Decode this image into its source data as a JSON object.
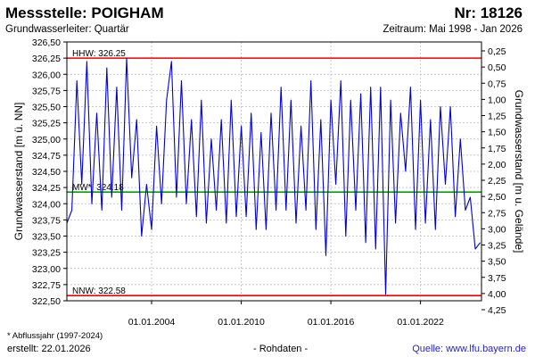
{
  "header": {
    "title": "Messstelle: POIGHAM",
    "number": "Nr: 18126",
    "subtitle": "Grundwasserleiter: Quartär",
    "period": "Zeitraum: Mai 1998 - Jan 2026"
  },
  "footer": {
    "footnote": "* Abflussjahr (1997-2024)",
    "created": "erstellt:  22.01.2026",
    "rawdata": "- Rohdaten -",
    "source": "Quelle: www.lfu.bayern.de"
  },
  "colors": {
    "series": "#0000dd",
    "hhw": "#ee0000",
    "nnw": "#ee0000",
    "mw": "#00a000",
    "grid": "#c8c8c8"
  },
  "chart_data": {
    "type": "line",
    "ylabel_left": "Grundwasserstand [m ü. NN]",
    "ylabel_right": "Grundwasserstand [m u. Gelände]",
    "ylim": [
      322.5,
      326.5
    ],
    "xlim": [
      "1998-05-01",
      "2026-01-31"
    ],
    "y_ticks": [
      "326,50",
      "326,25",
      "326,00",
      "325,75",
      "325,50",
      "325,25",
      "325,00",
      "324,75",
      "324,50",
      "324,25",
      "324,00",
      "323,75",
      "323,50",
      "323,25",
      "323,00",
      "322,75",
      "322,50"
    ],
    "y2_ticks": [
      "0,25",
      "0,50",
      "0,75",
      "1,00",
      "1,25",
      "1,50",
      "1,75",
      "2,00",
      "2,25",
      "2,50",
      "2,75",
      "3,00",
      "3,25",
      "3,50",
      "3,75",
      "4,00",
      "4,25"
    ],
    "x_ticks": [
      "01.01.2004",
      "01.01.2010",
      "01.01.2016",
      "01.01.2022"
    ],
    "grid": true,
    "reference_lines": [
      {
        "label": "HHW: 326.25",
        "value": 326.25
      },
      {
        "label": "MW*: 324.18",
        "value": 324.18
      },
      {
        "label": "NNW: 322.58",
        "value": 322.58
      }
    ],
    "series": [
      {
        "x": [
          "1998-05",
          "1998-09",
          "1999-01",
          "1999-05",
          "1999-09",
          "2000-01",
          "2000-05",
          "2000-09",
          "2001-01",
          "2001-05",
          "2001-09",
          "2002-01",
          "2002-05",
          "2002-09",
          "2003-01",
          "2003-05",
          "2003-09",
          "2004-01",
          "2004-05",
          "2004-09",
          "2005-01",
          "2005-05",
          "2005-09",
          "2006-01",
          "2006-05",
          "2006-09",
          "2007-01",
          "2007-05",
          "2007-09",
          "2008-01",
          "2008-05",
          "2008-09",
          "2009-01",
          "2009-05",
          "2009-09",
          "2010-01",
          "2010-05",
          "2010-09",
          "2011-01",
          "2011-05",
          "2011-09",
          "2012-01",
          "2012-05",
          "2012-09",
          "2013-01",
          "2013-05",
          "2013-09",
          "2014-01",
          "2014-05",
          "2014-09",
          "2015-01",
          "2015-05",
          "2015-09",
          "2016-01",
          "2016-05",
          "2016-09",
          "2017-01",
          "2017-05",
          "2017-09",
          "2018-01",
          "2018-05",
          "2018-09",
          "2019-01",
          "2019-05",
          "2019-09",
          "2020-01",
          "2020-05",
          "2020-09",
          "2021-01",
          "2021-05",
          "2021-09",
          "2022-01",
          "2022-05",
          "2022-09",
          "2023-01",
          "2023-05",
          "2023-09",
          "2024-01",
          "2024-05",
          "2024-09",
          "2025-01",
          "2025-05",
          "2025-09",
          "2026-01"
        ],
        "values": [
          323.7,
          323.9,
          325.9,
          324.3,
          326.2,
          324.0,
          325.4,
          323.9,
          326.1,
          324.1,
          325.8,
          323.9,
          326.25,
          324.4,
          325.3,
          323.5,
          324.3,
          323.6,
          325.2,
          324.0,
          325.6,
          326.2,
          324.1,
          325.9,
          324.0,
          325.3,
          323.8,
          325.6,
          323.7,
          325.0,
          323.9,
          325.3,
          323.7,
          325.6,
          323.8,
          325.2,
          323.8,
          325.4,
          323.6,
          325.1,
          323.6,
          325.4,
          323.9,
          325.8,
          323.9,
          325.6,
          323.7,
          325.2,
          323.9,
          325.9,
          323.6,
          325.3,
          323.2,
          325.6,
          324.3,
          325.9,
          323.5,
          325.6,
          323.9,
          325.7,
          323.4,
          325.8,
          323.3,
          325.8,
          322.6,
          325.6,
          323.7,
          325.4,
          324.5,
          325.8,
          323.6,
          325.6,
          323.7,
          325.3,
          323.6,
          325.5,
          324.3,
          325.5,
          323.8,
          325.0,
          323.9,
          324.1,
          323.3,
          323.4
        ]
      }
    ]
  }
}
